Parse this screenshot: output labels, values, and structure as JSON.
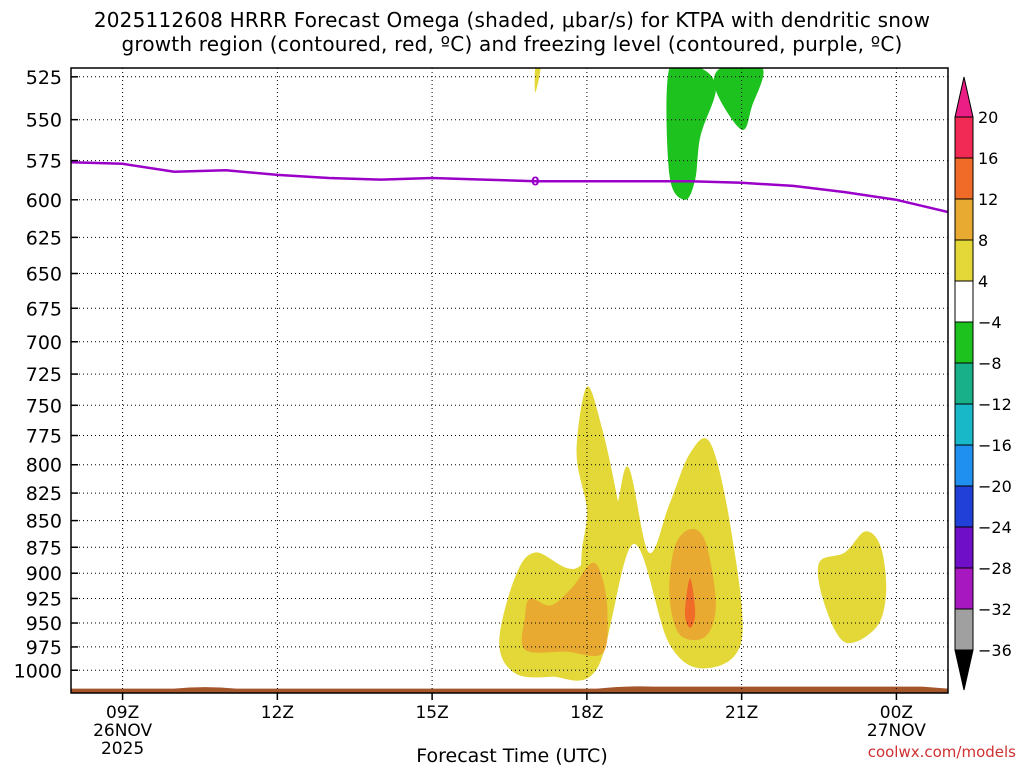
{
  "title": {
    "line1": "2025112608 HRRR Forecast Omega (shaded, μbar/s) for KTPA with dendritic snow",
    "line2": "growth region (contoured, red, ºC) and freezing level (contoured, purple, ºC)"
  },
  "credit": "coolwx.com/models",
  "chart_data": {
    "type": "contour",
    "x_axis": {
      "title": "Forecast Time (UTC)",
      "range_hours_after_08Z": [
        0,
        17
      ],
      "ticks": [
        {
          "hour": 1,
          "label": "09Z",
          "date": "26NOV",
          "year": "2025"
        },
        {
          "hour": 4,
          "label": "12Z"
        },
        {
          "hour": 7,
          "label": "15Z"
        },
        {
          "hour": 10,
          "label": "18Z"
        },
        {
          "hour": 13,
          "label": "21Z"
        },
        {
          "hour": 16,
          "label": "00Z",
          "date": "27NOV"
        }
      ]
    },
    "y_axis": {
      "unit": "mb",
      "scale": "log",
      "range": [
        1025,
        520
      ],
      "ticks": [
        525,
        550,
        575,
        600,
        625,
        650,
        675,
        700,
        725,
        750,
        775,
        800,
        825,
        850,
        875,
        900,
        925,
        950,
        975,
        1000
      ]
    },
    "grid": true,
    "colorbar": {
      "labels": [
        "20",
        "16",
        "12",
        "8",
        "4",
        "−4",
        "−8",
        "−12",
        "−16",
        "−20",
        "−24",
        "−28",
        "−32",
        "−36"
      ],
      "colors": [
        "#f02a55",
        "#f06a28",
        "#e8aa30",
        "#e3d838",
        "#ffffff",
        "#1ec21e",
        "#18b088",
        "#18b8c8",
        "#1f8ff0",
        "#2040d8",
        "#6f10c8",
        "#a818c0",
        "#a0a0a0"
      ],
      "top_arrow_color": "#ea1e84",
      "bottom_arrow_color": "#000000"
    },
    "freezing_level": {
      "label": "0",
      "color": "#9a00c8",
      "points": [
        [
          0,
          576
        ],
        [
          1,
          577
        ],
        [
          2,
          582
        ],
        [
          3,
          581
        ],
        [
          4,
          584
        ],
        [
          5,
          586
        ],
        [
          6,
          587
        ],
        [
          7,
          586
        ],
        [
          8,
          587
        ],
        [
          9,
          588
        ],
        [
          10,
          588
        ],
        [
          11,
          588
        ],
        [
          12,
          588
        ],
        [
          13,
          589
        ],
        [
          14,
          591
        ],
        [
          15,
          595
        ],
        [
          16,
          600
        ],
        [
          17,
          608
        ]
      ]
    },
    "omega_fields": [
      {
        "value_band": "4 to 8",
        "color": "#e3d838",
        "points": [
          [
            8.6,
            1003
          ],
          [
            8.3,
            970
          ],
          [
            8.6,
            905
          ],
          [
            9.0,
            880
          ],
          [
            9.8,
            895
          ],
          [
            10.5,
            848
          ],
          [
            10.8,
            802
          ],
          [
            11.2,
            880
          ],
          [
            11.6,
            835
          ],
          [
            12.0,
            790
          ],
          [
            12.4,
            782
          ],
          [
            12.8,
            860
          ],
          [
            13.0,
            968
          ],
          [
            12.3,
            998
          ],
          [
            11.6,
            972
          ],
          [
            10.9,
            872
          ],
          [
            10.2,
            998
          ],
          [
            9.3,
            1007
          ]
        ]
      },
      {
        "value_band": "4 to 8",
        "color": "#e3d838",
        "points": [
          [
            10.0,
            735
          ],
          [
            10.3,
            770
          ],
          [
            10.6,
            832
          ],
          [
            10.7,
            870
          ],
          [
            10.6,
            900
          ],
          [
            10.4,
            930
          ],
          [
            10.1,
            950
          ],
          [
            9.9,
            920
          ],
          [
            9.9,
            880
          ],
          [
            10.0,
            840
          ],
          [
            9.8,
            790
          ]
        ]
      },
      {
        "value_band": "4 to 8",
        "color": "#e3d838",
        "points": [
          [
            15.0,
            880
          ],
          [
            15.4,
            860
          ],
          [
            15.7,
            875
          ],
          [
            15.8,
            920
          ],
          [
            15.6,
            955
          ],
          [
            15.0,
            970
          ],
          [
            14.6,
            930
          ],
          [
            14.5,
            890
          ]
        ]
      },
      {
        "value_band": "4 to 8",
        "color": "#e3d838",
        "points": [
          [
            9.0,
            520
          ],
          [
            9.1,
            520
          ],
          [
            9.0,
            534
          ]
        ]
      },
      {
        "value_band": "8 to 12",
        "color": "#e8aa30",
        "points": [
          [
            8.8,
            944
          ],
          [
            8.9,
            925
          ],
          [
            9.3,
            932
          ],
          [
            9.7,
            915
          ],
          [
            10.1,
            890
          ],
          [
            10.3,
            905
          ],
          [
            10.4,
            940
          ],
          [
            10.3,
            982
          ],
          [
            9.6,
            980
          ],
          [
            8.8,
            978
          ]
        ]
      },
      {
        "value_band": "8 to 12",
        "color": "#e8aa30",
        "points": [
          [
            12.0,
            858
          ],
          [
            12.3,
            870
          ],
          [
            12.5,
            930
          ],
          [
            12.3,
            964
          ],
          [
            11.8,
            962
          ],
          [
            11.6,
            922
          ],
          [
            11.7,
            875
          ]
        ]
      },
      {
        "value_band": "12 to 16",
        "color": "#f06a28",
        "points": [
          [
            12.0,
            905
          ],
          [
            12.1,
            940
          ],
          [
            12.0,
            955
          ],
          [
            11.9,
            940
          ]
        ]
      },
      {
        "value_band": "-4 to -8",
        "color": "#1ec21e",
        "points": [
          [
            11.6,
            520
          ],
          [
            12.2,
            520
          ],
          [
            12.5,
            532
          ],
          [
            12.2,
            560
          ],
          [
            12.1,
            587
          ],
          [
            11.9,
            600
          ],
          [
            11.6,
            584
          ]
        ]
      },
      {
        "value_band": "-4 to -8",
        "color": "#1ec21e",
        "points": [
          [
            12.6,
            520
          ],
          [
            13.4,
            520
          ],
          [
            13.2,
            542
          ],
          [
            13.0,
            556
          ],
          [
            12.5,
            533
          ]
        ]
      }
    ],
    "terrain": {
      "color": "#a4552a",
      "surface_pressure_mb": 1019
    }
  }
}
